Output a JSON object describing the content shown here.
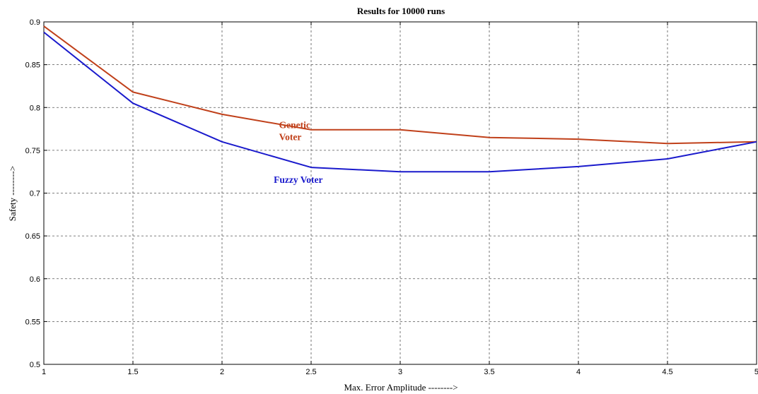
{
  "chart_data": {
    "type": "line",
    "title": "Results for 10000 runs",
    "xlabel": "Max. Error Amplitude -------->",
    "ylabel": "Safety -------->",
    "xlim": [
      1,
      5
    ],
    "ylim": [
      0.5,
      0.9
    ],
    "x_ticks": [
      1,
      1.5,
      2,
      2.5,
      3,
      3.5,
      4,
      4.5,
      5
    ],
    "x_tick_labels": [
      "1",
      "1.5",
      "2",
      "2.5",
      "3",
      "3.5",
      "4",
      "4.5",
      "5"
    ],
    "y_ticks": [
      0.5,
      0.55,
      0.6,
      0.65,
      0.7,
      0.75,
      0.8,
      0.85,
      0.9
    ],
    "y_tick_labels": [
      "0.5",
      "0.55",
      "0.6",
      "0.65",
      "0.7",
      "0.75",
      "0.8",
      "0.85",
      "0.9"
    ],
    "grid": true,
    "x": [
      1,
      1.5,
      2,
      2.5,
      3,
      3.5,
      4,
      4.5,
      5
    ],
    "series": [
      {
        "name": "Genetic Voter",
        "label_lines": [
          "Genetic",
          "Voter"
        ],
        "color": "#c0401a",
        "label_at": [
          2.32,
          0.776
        ],
        "values": [
          0.895,
          0.818,
          0.792,
          0.774,
          0.774,
          0.765,
          0.763,
          0.758,
          0.76
        ]
      },
      {
        "name": "Fuzzy Voter",
        "label_lines": [
          "Fuzzy Voter"
        ],
        "color": "#1a1acc",
        "label_at": [
          2.29,
          0.712
        ],
        "values": [
          0.888,
          0.805,
          0.76,
          0.73,
          0.725,
          0.725,
          0.731,
          0.74,
          0.76
        ]
      }
    ]
  }
}
